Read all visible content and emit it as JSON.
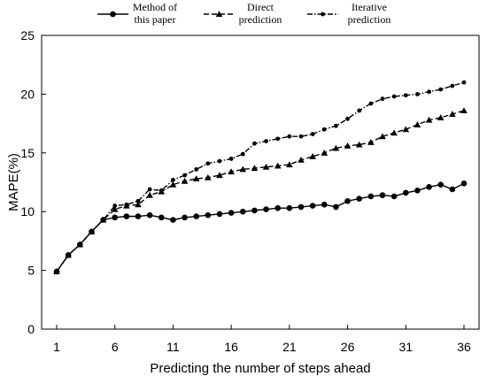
{
  "chart_data": {
    "type": "line",
    "xlabel": "Predicting the number of steps ahead",
    "ylabel": "MAPE(%)",
    "xlim": [
      1,
      36
    ],
    "ylim": [
      0,
      25
    ],
    "xticks": [
      1,
      6,
      11,
      16,
      21,
      26,
      31,
      36
    ],
    "yticks": [
      0,
      5,
      10,
      15,
      20,
      25
    ],
    "grid": false,
    "legend_position": "top",
    "x": [
      1,
      2,
      3,
      4,
      5,
      6,
      7,
      8,
      9,
      10,
      11,
      12,
      13,
      14,
      15,
      16,
      17,
      18,
      19,
      20,
      21,
      22,
      23,
      24,
      25,
      26,
      27,
      28,
      29,
      30,
      31,
      32,
      33,
      34,
      35,
      36
    ],
    "series": [
      {
        "name": "Method of this paper",
        "legend_lines": [
          "Method of",
          "this paper"
        ],
        "marker": "circle",
        "dash": "",
        "color": "#000000",
        "values": [
          4.9,
          6.3,
          7.2,
          8.3,
          9.3,
          9.5,
          9.6,
          9.6,
          9.7,
          9.5,
          9.3,
          9.5,
          9.6,
          9.7,
          9.8,
          9.9,
          10.0,
          10.1,
          10.2,
          10.3,
          10.3,
          10.4,
          10.5,
          10.6,
          10.4,
          10.9,
          11.1,
          11.3,
          11.4,
          11.3,
          11.6,
          11.8,
          12.1,
          12.3,
          11.9,
          12.4
        ]
      },
      {
        "name": "Direct prediction",
        "legend_lines": [
          "Direct",
          "prediction"
        ],
        "marker": "triangle",
        "dash": "6,3",
        "color": "#000000",
        "values": [
          4.9,
          6.3,
          7.2,
          8.3,
          9.3,
          10.2,
          10.5,
          10.6,
          11.4,
          11.7,
          12.3,
          12.6,
          12.8,
          12.9,
          13.1,
          13.4,
          13.6,
          13.7,
          13.8,
          13.9,
          14.0,
          14.4,
          14.7,
          15.0,
          15.4,
          15.6,
          15.7,
          15.9,
          16.4,
          16.7,
          17.0,
          17.4,
          17.8,
          18.0,
          18.3,
          18.6
        ]
      },
      {
        "name": "Iterative prediction",
        "legend_lines": [
          "Iterative",
          "prediction"
        ],
        "marker": "smalldot",
        "dash": "6,2,1.5,2",
        "color": "#000000",
        "values": [
          4.9,
          6.3,
          7.2,
          8.3,
          9.3,
          10.5,
          10.6,
          10.9,
          11.9,
          11.8,
          12.7,
          13.1,
          13.6,
          14.1,
          14.3,
          14.5,
          14.9,
          15.8,
          16.0,
          16.2,
          16.4,
          16.4,
          16.6,
          17.0,
          17.3,
          17.9,
          18.6,
          19.2,
          19.6,
          19.8,
          19.9,
          20.0,
          20.2,
          20.4,
          20.7,
          21.0
        ]
      }
    ]
  }
}
